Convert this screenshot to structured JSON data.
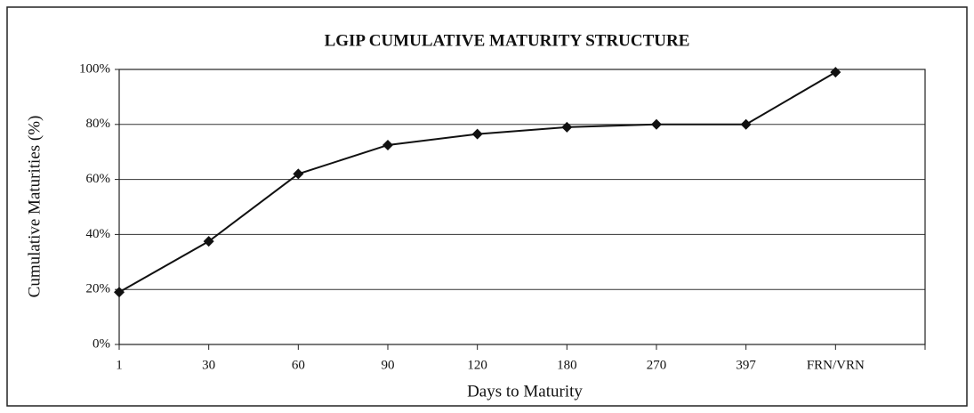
{
  "chart_data": {
    "type": "line",
    "title": "LGIP CUMULATIVE MATURITY STRUCTURE",
    "xlabel": "Days to Maturity",
    "ylabel": "Cumulative Maturities (%)",
    "categories": [
      "1",
      "30",
      "60",
      "90",
      "120",
      "180",
      "270",
      "397",
      "FRN/VRN"
    ],
    "values": [
      19,
      37.5,
      62,
      72.5,
      76.5,
      79,
      80,
      80,
      99
    ],
    "color": "#111111",
    "ylim": [
      0,
      100
    ],
    "yticks": [
      {
        "value": 0,
        "label": "0%"
      },
      {
        "value": 20,
        "label": "20%"
      },
      {
        "value": 40,
        "label": "40%"
      },
      {
        "value": 60,
        "label": "60%"
      },
      {
        "value": 80,
        "label": "80%"
      },
      {
        "value": 100,
        "label": "100%"
      }
    ],
    "grid": true
  }
}
